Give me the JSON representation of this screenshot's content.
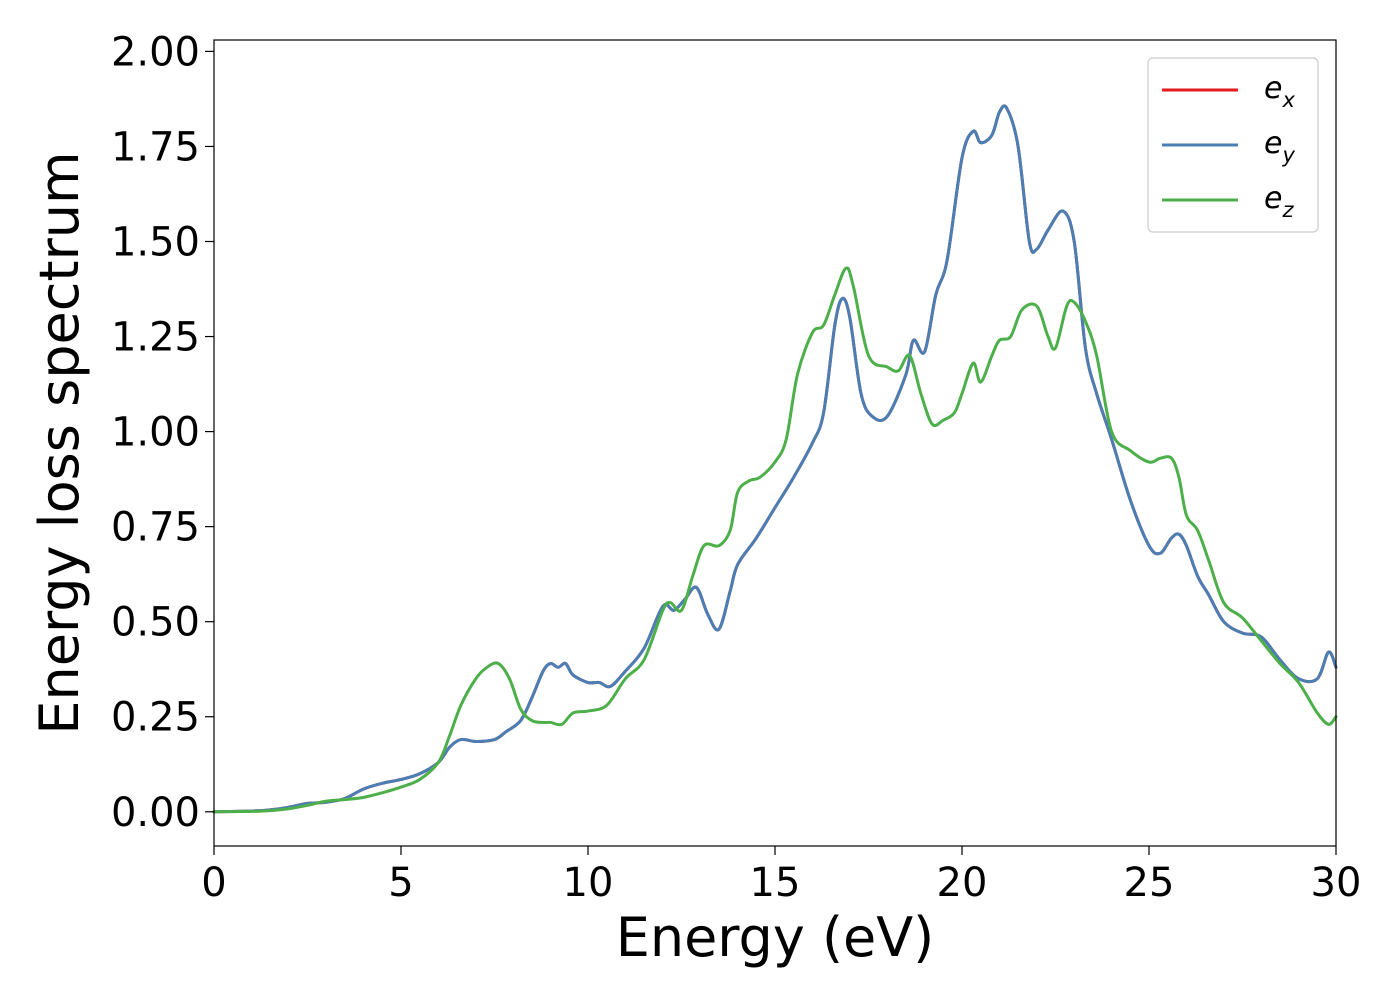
{
  "chart_data": {
    "type": "line",
    "xlabel": "Energy (eV)",
    "ylabel": "Energy loss spectrum",
    "xlim": [
      0,
      30
    ],
    "ylim": [
      -0.09,
      2.03
    ],
    "xticks": [
      "0",
      "5",
      "10",
      "15",
      "20",
      "25",
      "30"
    ],
    "yticks": [
      "0.00",
      "0.25",
      "0.50",
      "0.75",
      "1.00",
      "1.25",
      "1.50",
      "1.75",
      "2.00"
    ],
    "grid": false,
    "legend_position": "top-right",
    "series": [
      {
        "name": "e",
        "name_sub": "x",
        "color": "#e41a1c",
        "x": [
          0,
          1,
          1.5,
          2,
          2.5,
          3,
          3.5,
          4,
          4.5,
          5,
          5.5,
          6,
          6.3,
          6.6,
          7,
          7.5,
          7.8,
          8.2,
          8.5,
          8.8,
          9,
          9.2,
          9.4,
          9.6,
          10,
          10.3,
          10.6,
          11,
          11.5,
          12,
          12.3,
          12.6,
          12.9,
          13.2,
          13.5,
          13.8,
          14,
          14.5,
          15,
          15.5,
          16,
          16.3,
          16.6,
          16.8,
          17,
          17.3,
          17.6,
          18,
          18.5,
          18.7,
          19,
          19.3,
          19.6,
          20,
          20.3,
          20.5,
          20.8,
          21,
          21.2,
          21.5,
          21.8,
          22,
          22.3,
          22.7,
          23,
          23.3,
          23.6,
          24,
          24.5,
          25,
          25.3,
          25.6,
          25.8,
          26,
          26.3,
          26.6,
          27,
          27.5,
          28,
          28.5,
          29,
          29.5,
          29.8,
          30
        ],
        "values": [
          0,
          0.002,
          0.005,
          0.012,
          0.022,
          0.025,
          0.035,
          0.06,
          0.075,
          0.085,
          0.1,
          0.13,
          0.17,
          0.19,
          0.185,
          0.19,
          0.21,
          0.24,
          0.3,
          0.37,
          0.39,
          0.38,
          0.39,
          0.36,
          0.34,
          0.34,
          0.33,
          0.37,
          0.43,
          0.54,
          0.53,
          0.56,
          0.59,
          0.52,
          0.48,
          0.58,
          0.65,
          0.72,
          0.8,
          0.88,
          0.97,
          1.05,
          1.28,
          1.35,
          1.3,
          1.1,
          1.04,
          1.04,
          1.15,
          1.24,
          1.21,
          1.36,
          1.45,
          1.72,
          1.79,
          1.76,
          1.78,
          1.84,
          1.85,
          1.75,
          1.5,
          1.48,
          1.53,
          1.58,
          1.5,
          1.22,
          1.1,
          0.98,
          0.82,
          0.7,
          0.68,
          0.72,
          0.73,
          0.7,
          0.62,
          0.57,
          0.5,
          0.47,
          0.46,
          0.4,
          0.35,
          0.35,
          0.42,
          0.38
        ]
      },
      {
        "name": "e",
        "name_sub": "y",
        "color": "#4a7fb5",
        "x": [
          0,
          1,
          1.5,
          2,
          2.5,
          3,
          3.5,
          4,
          4.5,
          5,
          5.5,
          6,
          6.3,
          6.6,
          7,
          7.5,
          7.8,
          8.2,
          8.5,
          8.8,
          9,
          9.2,
          9.4,
          9.6,
          10,
          10.3,
          10.6,
          11,
          11.5,
          12,
          12.3,
          12.6,
          12.9,
          13.2,
          13.5,
          13.8,
          14,
          14.5,
          15,
          15.5,
          16,
          16.3,
          16.6,
          16.8,
          17,
          17.3,
          17.6,
          18,
          18.5,
          18.7,
          19,
          19.3,
          19.6,
          20,
          20.3,
          20.5,
          20.8,
          21,
          21.2,
          21.5,
          21.8,
          22,
          22.3,
          22.7,
          23,
          23.3,
          23.6,
          24,
          24.5,
          25,
          25.3,
          25.6,
          25.8,
          26,
          26.3,
          26.6,
          27,
          27.5,
          28,
          28.5,
          29,
          29.5,
          29.8,
          30
        ],
        "values": [
          0,
          0.002,
          0.005,
          0.012,
          0.022,
          0.025,
          0.035,
          0.06,
          0.075,
          0.085,
          0.1,
          0.13,
          0.17,
          0.19,
          0.185,
          0.19,
          0.21,
          0.24,
          0.3,
          0.37,
          0.39,
          0.38,
          0.39,
          0.36,
          0.34,
          0.34,
          0.33,
          0.37,
          0.43,
          0.54,
          0.53,
          0.56,
          0.59,
          0.52,
          0.48,
          0.58,
          0.65,
          0.72,
          0.8,
          0.88,
          0.97,
          1.05,
          1.28,
          1.35,
          1.3,
          1.1,
          1.04,
          1.04,
          1.15,
          1.24,
          1.21,
          1.36,
          1.45,
          1.72,
          1.79,
          1.76,
          1.78,
          1.84,
          1.85,
          1.75,
          1.5,
          1.48,
          1.53,
          1.58,
          1.5,
          1.22,
          1.1,
          0.98,
          0.82,
          0.7,
          0.68,
          0.72,
          0.73,
          0.7,
          0.62,
          0.57,
          0.5,
          0.47,
          0.46,
          0.4,
          0.35,
          0.35,
          0.42,
          0.38
        ]
      },
      {
        "name": "e",
        "name_sub": "z",
        "color": "#4daf4a",
        "x": [
          0,
          1,
          1.5,
          2,
          2.5,
          3,
          3.5,
          4,
          4.5,
          5,
          5.5,
          6,
          6.3,
          6.6,
          7,
          7.3,
          7.6,
          7.9,
          8.2,
          8.5,
          8.8,
          9,
          9.3,
          9.6,
          10,
          10.5,
          11,
          11.5,
          12,
          12.2,
          12.5,
          12.8,
          13.1,
          13.5,
          13.8,
          14,
          14.3,
          14.6,
          15,
          15.3,
          15.6,
          16,
          16.3,
          16.6,
          16.9,
          17.1,
          17.5,
          18,
          18.3,
          18.6,
          18.9,
          19.2,
          19.5,
          19.8,
          20,
          20.3,
          20.5,
          20.8,
          21,
          21.3,
          21.6,
          22,
          22.3,
          22.5,
          22.8,
          23,
          23.3,
          23.6,
          24,
          24.5,
          25,
          25.3,
          25.6,
          25.8,
          26,
          26.3,
          26.6,
          27,
          27.5,
          28,
          28.5,
          29,
          29.5,
          29.8,
          30
        ],
        "values": [
          0,
          0.001,
          0.003,
          0.008,
          0.017,
          0.028,
          0.032,
          0.038,
          0.05,
          0.065,
          0.085,
          0.13,
          0.2,
          0.28,
          0.35,
          0.38,
          0.39,
          0.35,
          0.27,
          0.24,
          0.235,
          0.235,
          0.23,
          0.26,
          0.265,
          0.28,
          0.35,
          0.4,
          0.53,
          0.55,
          0.53,
          0.62,
          0.7,
          0.7,
          0.74,
          0.84,
          0.87,
          0.88,
          0.92,
          0.98,
          1.15,
          1.26,
          1.28,
          1.36,
          1.43,
          1.38,
          1.2,
          1.17,
          1.16,
          1.2,
          1.1,
          1.02,
          1.03,
          1.05,
          1.1,
          1.18,
          1.13,
          1.2,
          1.24,
          1.25,
          1.32,
          1.33,
          1.25,
          1.22,
          1.33,
          1.34,
          1.29,
          1.2,
          1.0,
          0.95,
          0.92,
          0.93,
          0.93,
          0.88,
          0.78,
          0.74,
          0.66,
          0.55,
          0.51,
          0.45,
          0.39,
          0.34,
          0.26,
          0.23,
          0.25
        ]
      }
    ]
  }
}
